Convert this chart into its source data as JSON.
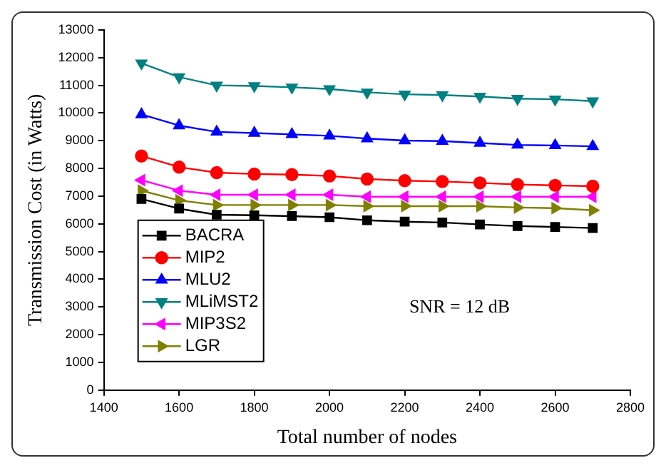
{
  "chart_data": {
    "type": "line",
    "xlabel": "Total number of nodes",
    "ylabel": "Transmission Cost (in Watts)",
    "x": [
      1500,
      1600,
      1700,
      1800,
      1900,
      2000,
      2100,
      2200,
      2300,
      2400,
      2500,
      2600,
      2700
    ],
    "series": [
      {
        "name": "BACRA",
        "color": "#000000",
        "marker": "square",
        "values": [
          6900,
          6550,
          6330,
          6310,
          6280,
          6240,
          6130,
          6080,
          6050,
          5980,
          5920,
          5890,
          5850
        ]
      },
      {
        "name": "MIP2",
        "color": "#ff0000",
        "marker": "circle",
        "values": [
          8450,
          8050,
          7850,
          7800,
          7780,
          7730,
          7620,
          7560,
          7530,
          7480,
          7420,
          7390,
          7360
        ]
      },
      {
        "name": "MLU2",
        "color": "#0000ff",
        "marker": "triangle",
        "values": [
          9950,
          9550,
          9320,
          9280,
          9230,
          9180,
          9080,
          9010,
          8990,
          8920,
          8850,
          8830,
          8800
        ]
      },
      {
        "name": "MLiMST2",
        "color": "#008080",
        "marker": "triangle-down",
        "values": [
          11800,
          11300,
          11000,
          10980,
          10930,
          10870,
          10750,
          10680,
          10650,
          10600,
          10520,
          10500,
          10430
        ]
      },
      {
        "name": "MIP3S2",
        "color": "#ff00ff",
        "marker": "triangle-left",
        "values": [
          7580,
          7200,
          7050,
          7050,
          7050,
          7050,
          6980,
          6980,
          6980,
          6980,
          6980,
          6980,
          6980
        ]
      },
      {
        "name": "LGR",
        "color": "#808000",
        "marker": "triangle-right",
        "values": [
          7200,
          6850,
          6680,
          6680,
          6680,
          6680,
          6640,
          6640,
          6640,
          6640,
          6590,
          6570,
          6490
        ]
      }
    ],
    "xlim": [
      1400,
      2800
    ],
    "xticks": [
      1400,
      1600,
      1800,
      2000,
      2200,
      2400,
      2600,
      2800
    ],
    "ylim": [
      0,
      13000
    ],
    "yticks": [
      0,
      1000,
      2000,
      3000,
      4000,
      5000,
      6000,
      7000,
      8000,
      9000,
      10000,
      11000,
      12000,
      13000
    ],
    "grid": false,
    "legend": "bottom left",
    "line_style": "solid",
    "annotations": [
      "SNR = 12 dB"
    ]
  }
}
